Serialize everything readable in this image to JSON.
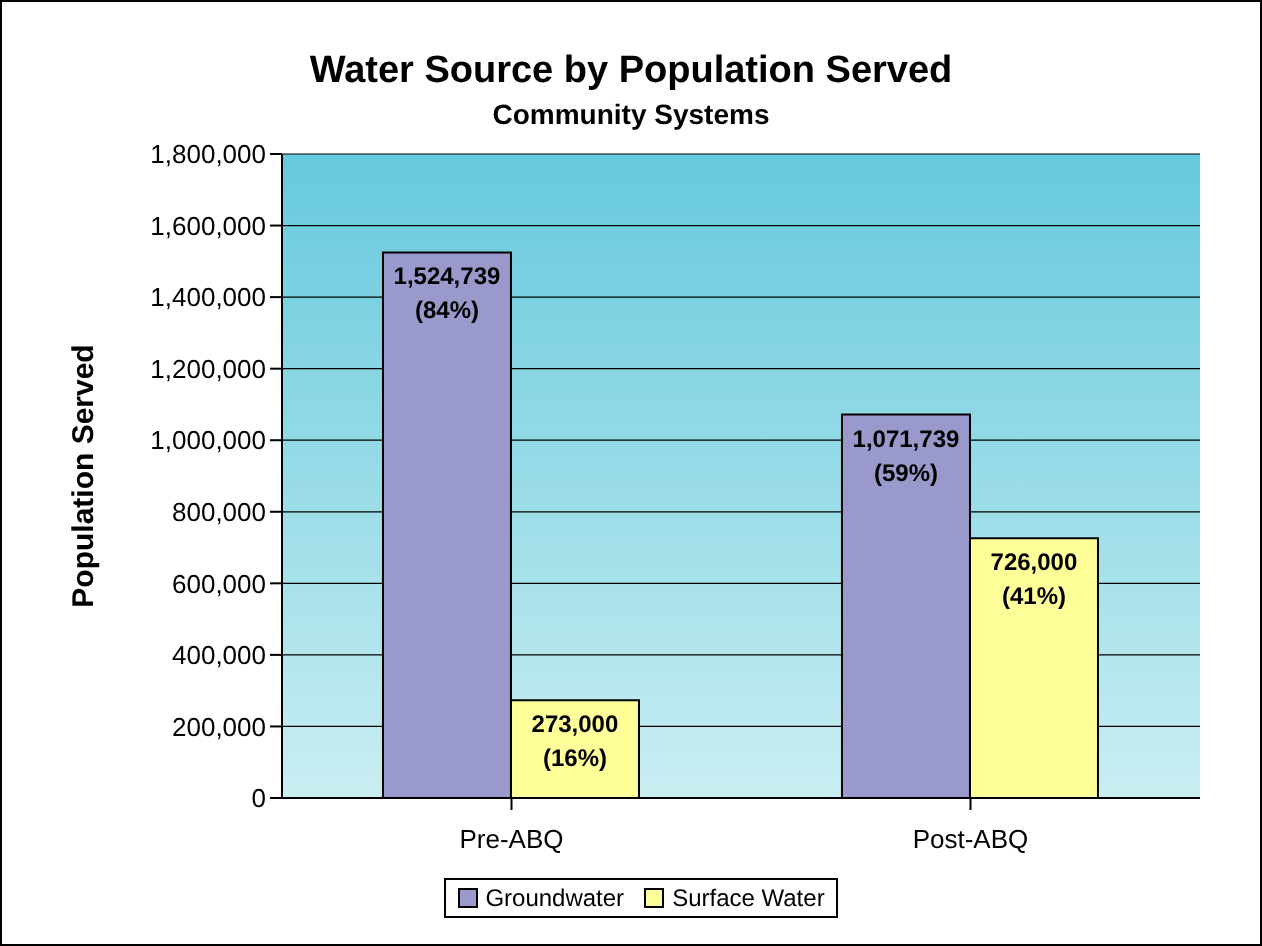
{
  "chart_data": {
    "type": "bar",
    "title": "Water Source by Population Served",
    "subtitle": "Community Systems",
    "ylabel": "Population Served",
    "categories": [
      "Pre-ABQ",
      "Post-ABQ"
    ],
    "series": [
      {
        "name": "Groundwater",
        "color": "#9999cc",
        "values": [
          1524739,
          1071739
        ],
        "value_labels": [
          "1,524,739\n(84%)",
          "1,071,739\n(59%)"
        ]
      },
      {
        "name": "Surface Water",
        "color": "#ffff99",
        "values": [
          273000,
          726000
        ],
        "value_labels": [
          "273,000\n(16%)",
          "726,000\n(41%)"
        ]
      }
    ],
    "ylim": [
      0,
      1800000
    ],
    "yticks": [
      0,
      {
        "value": 200000,
        "label": "200,000"
      },
      {
        "value": 400000,
        "label": "400,000"
      },
      {
        "value": 600000,
        "label": "600,000"
      },
      {
        "value": 800000,
        "label": "800,000"
      },
      {
        "value": 1000000,
        "label": "1,000,000"
      },
      {
        "value": 1200000,
        "label": "1,200,000"
      },
      {
        "value": 1400000,
        "label": "1,400,000"
      },
      {
        "value": 1600000,
        "label": "1,600,000"
      },
      {
        "value": 1800000,
        "label": "1,800,000"
      }
    ],
    "grid": "y",
    "legend": "bottom"
  }
}
